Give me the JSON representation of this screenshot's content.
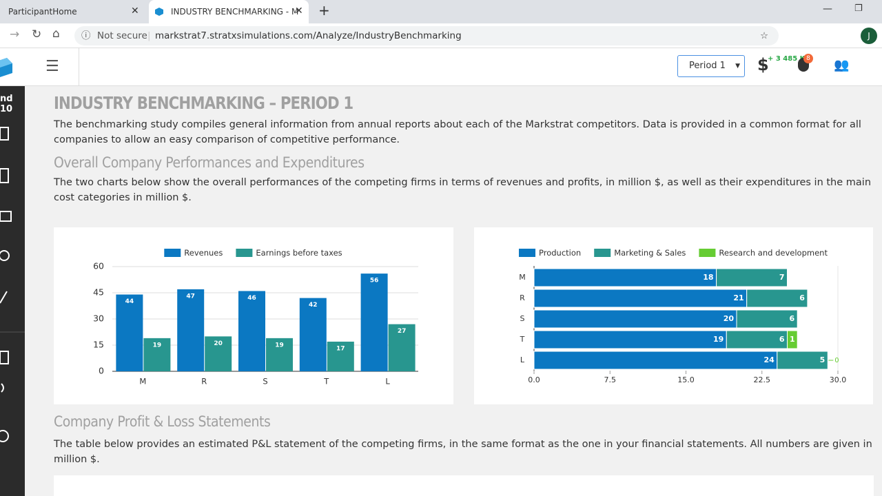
{
  "browser": {
    "tabs": [
      "ParticipantHome",
      "INDUSTRY BENCHMARKING - M"
    ],
    "security": "Not secure",
    "url": "markstrat7.stratxsimulations.com/Analyze/IndustryBenchmarking",
    "avatar": "J"
  },
  "header": {
    "period": "Period 1",
    "currency": "$",
    "budget": "+ 3 485 K$",
    "notifications": "8"
  },
  "sidebar": {
    "label": "nd 10"
  },
  "content": {
    "title": "INDUSTRY BENCHMARKING – PERIOD 1",
    "intro": "The benchmarking study compiles general information from annual reports about each of the Markstrat competitors. Data is provided in a common format for all companies to allow an easy comparison of competitive performance.",
    "sections": [
      {
        "heading": "Overall Company Performances and Expenditures",
        "text": "The two charts below show the overall performances of the competing firms in terms of revenues and profits, in million $, as well as their expenditures in the main cost categories in million $."
      },
      {
        "heading": "Company Profit & Loss Statements",
        "text": "The table below provides an estimated P&L statement of the competing firms, in the same format as the one in your financial statements. All numbers are given in million $."
      }
    ]
  },
  "chart_data": [
    {
      "type": "bar",
      "categories": [
        "M",
        "R",
        "S",
        "T",
        "L"
      ],
      "series": [
        {
          "name": "Revenues",
          "color": "#0b78c2",
          "values": [
            44,
            47,
            46,
            42,
            56
          ]
        },
        {
          "name": "Earnings before taxes",
          "color": "#28968f",
          "values": [
            19,
            20,
            19,
            17,
            27
          ]
        }
      ],
      "ylim": [
        0,
        60
      ],
      "yticks": [
        0,
        15,
        30,
        45,
        60
      ],
      "grid": true,
      "legend": "top"
    },
    {
      "type": "barh",
      "stacked": true,
      "categories": [
        "M",
        "R",
        "S",
        "T",
        "L"
      ],
      "series": [
        {
          "name": "Production",
          "color": "#0b78c2",
          "values": [
            18,
            21,
            20,
            19,
            24
          ]
        },
        {
          "name": "Marketing & Sales",
          "color": "#28968f",
          "values": [
            7,
            6,
            6,
            6,
            5
          ]
        },
        {
          "name": "Research and development",
          "color": "#66cc33",
          "values": [
            null,
            null,
            null,
            1,
            0
          ]
        }
      ],
      "xlim": [
        0,
        30
      ],
      "xticks": [
        {
          "value": 0,
          "label": "0.0"
        },
        7.5,
        {
          "value": 15,
          "label": "15.0"
        },
        22.5,
        {
          "value": 30,
          "label": "30.0"
        }
      ],
      "grid": false,
      "legend": "top"
    }
  ]
}
